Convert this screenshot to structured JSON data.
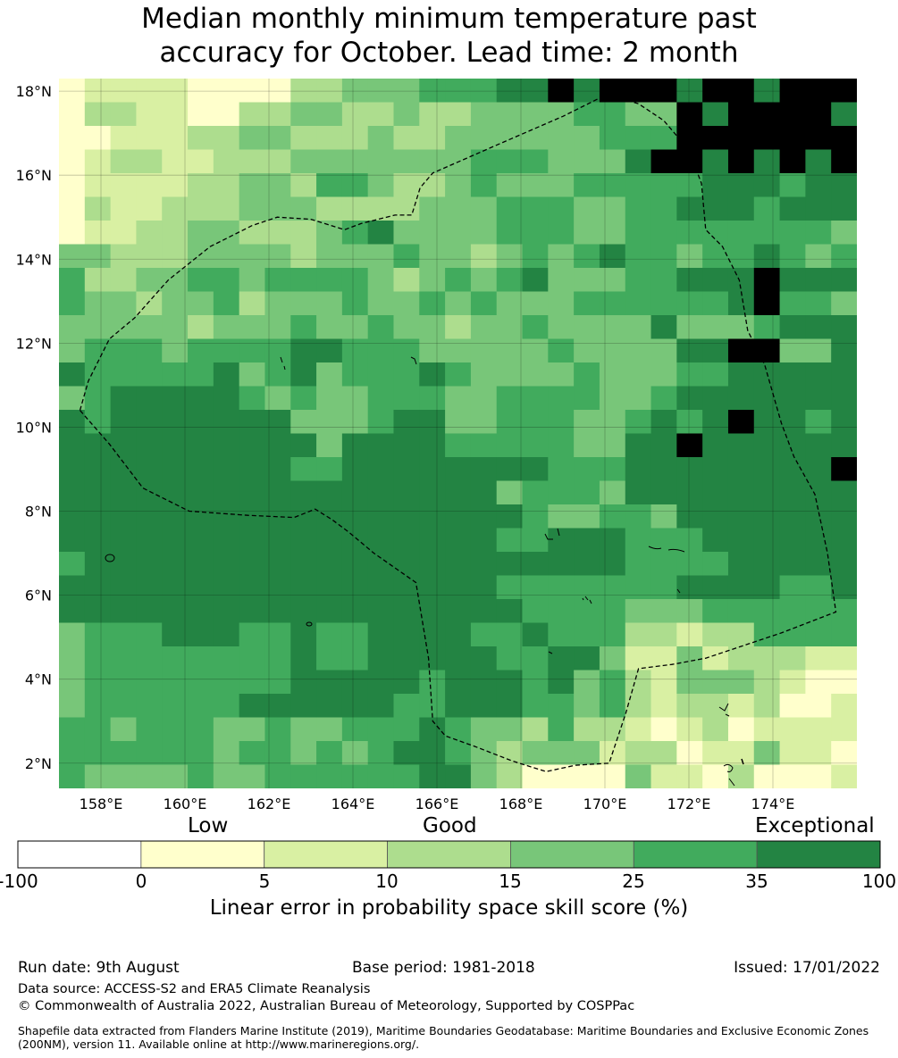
{
  "title": {
    "line1": "Median monthly minimum temperature past",
    "line2": "accuracy for October. Lead time: 2 month"
  },
  "map": {
    "lon_range": [
      157,
      176
    ],
    "lat_range": [
      1.4,
      18.3
    ],
    "lat_ticks": [
      {
        "value": 2,
        "label": "2°N"
      },
      {
        "value": 4,
        "label": "4°N"
      },
      {
        "value": 6,
        "label": "6°N"
      },
      {
        "value": 8,
        "label": "8°N"
      },
      {
        "value": 10,
        "label": "10°N"
      },
      {
        "value": 12,
        "label": "12°N"
      },
      {
        "value": 14,
        "label": "14°N"
      },
      {
        "value": 16,
        "label": "16°N"
      },
      {
        "value": 18,
        "label": "18°N"
      }
    ],
    "lon_ticks": [
      {
        "value": 158,
        "label": "158°E"
      },
      {
        "value": 160,
        "label": "160°E"
      },
      {
        "value": 162,
        "label": "162°E"
      },
      {
        "value": 164,
        "label": "164°E"
      },
      {
        "value": 166,
        "label": "166°E"
      },
      {
        "value": 168,
        "label": "168°E"
      },
      {
        "value": 170,
        "label": "170°E"
      },
      {
        "value": 172,
        "label": "172°E"
      },
      {
        "value": 174,
        "label": "174°E"
      }
    ],
    "grid_lines": true,
    "cell_size_deg": 0.833,
    "skill_grid_classes": [
      "0111100002233344455656665665666",
      "0221100223322322333344336566665",
      "0011122332223223333334446666666",
      "0122112223333333444333566565656",
      "0111122332443223433344444555455",
      "0211222333222233344433445554555",
      "0112233222345333344433444444443",
      "3322233332333433234345443445434",
      "4223344344443234345333445556555",
      "4332334233343343433344444456443",
      "3333323334334332334333353334555",
      "3444344445544433333433335566335",
      "5444445345344454333343334455555",
      "3455555434334443344443345555555",
      "5455555553334553344433454565545",
      "5555555555355554444433556555555",
      "5555555554455555555444555555556",
      "5555555555555555534443555555555",
      "5555555555555555554334435555555",
      "5555555555555555544555444555555",
      "4555555555555555555555444455555",
      "5555555555555555544444445555445",
      "5555555555555555554444333444444",
      "3444555445445555445444221224444",
      "3444444445445555544553113122211",
      "3444444445555545554534213332100",
      "3444444555555445554434212212001",
      "4434443343344454332422101201111",
      "4444443443434554323331220113110",
      "4333343344444455320000311020001"
    ],
    "boundary_lon_lat": [
      [
        157.5,
        10.4
      ],
      [
        157.7,
        11.1
      ],
      [
        158.2,
        12.1
      ],
      [
        158.8,
        12.6
      ],
      [
        159.6,
        13.5
      ],
      [
        160.6,
        14.3
      ],
      [
        161.6,
        14.8
      ],
      [
        162.2,
        15.0
      ],
      [
        163.0,
        14.95
      ],
      [
        163.8,
        14.7
      ],
      [
        164.2,
        14.85
      ],
      [
        165.0,
        15.05
      ],
      [
        165.4,
        15.05
      ],
      [
        165.6,
        15.7
      ],
      [
        165.9,
        16.05
      ],
      [
        167.5,
        16.75
      ],
      [
        169.0,
        17.4
      ],
      [
        169.9,
        17.85
      ],
      [
        170.1,
        17.9
      ],
      [
        170.8,
        17.7
      ],
      [
        171.4,
        17.3
      ],
      [
        172.0,
        16.6
      ],
      [
        172.3,
        15.8
      ],
      [
        172.4,
        14.7
      ],
      [
        172.8,
        14.3
      ],
      [
        173.2,
        13.5
      ],
      [
        173.4,
        12.3
      ],
      [
        173.8,
        11.5
      ],
      [
        174.2,
        10.1
      ],
      [
        174.5,
        9.3
      ],
      [
        175.0,
        8.4
      ],
      [
        175.3,
        7.0
      ],
      [
        175.5,
        5.6
      ],
      [
        174.2,
        5.1
      ],
      [
        172.4,
        4.5
      ],
      [
        171.6,
        4.35
      ],
      [
        170.8,
        4.25
      ],
      [
        170.5,
        3.2
      ],
      [
        170.1,
        2.0
      ],
      [
        169.3,
        1.95
      ],
      [
        168.6,
        1.8
      ],
      [
        167.8,
        2.05
      ],
      [
        166.9,
        2.4
      ],
      [
        166.2,
        2.65
      ],
      [
        165.9,
        3.0
      ],
      [
        165.8,
        4.5
      ],
      [
        165.5,
        6.3
      ],
      [
        164.5,
        7.0
      ],
      [
        163.9,
        7.5
      ],
      [
        163.5,
        7.8
      ],
      [
        163.1,
        8.05
      ],
      [
        162.6,
        7.85
      ],
      [
        161.5,
        7.9
      ],
      [
        160.1,
        8.0
      ],
      [
        159.0,
        8.55
      ],
      [
        158.2,
        9.6
      ],
      [
        157.5,
        10.4
      ]
    ]
  },
  "colorbar": {
    "category_labels": {
      "low": "Low",
      "good": "Good",
      "exceptional": "Exceptional"
    },
    "colors": [
      "#ffffff",
      "#ffffcc",
      "#d9f0a3",
      "#addd8e",
      "#78c679",
      "#41ab5d",
      "#238443"
    ],
    "tick_labels": [
      "-100",
      "0",
      "5",
      "10",
      "15",
      "25",
      "35",
      "100"
    ],
    "label": "Linear error in probability space skill score (%)"
  },
  "footer": {
    "run_date": "Run date: 9th August",
    "base_period": "Base period: 1981-2018",
    "issued": "Issued: 17/01/2022",
    "data_source": "Data source: ACCESS-S2 and ERA5 Climate Reanalysis",
    "copyright": "© Commonwealth of Australia 2022, Australian Bureau of Meteorology, Supported by COSPPac",
    "shapefile_note": "Shapefile data extracted from Flanders Marine Institute (2019), Maritime Boundaries Geodatabase: Maritime Boundaries and Exclusive Economic Zones (200NM), version 11. Available online at http://www.marineregions.org/."
  }
}
